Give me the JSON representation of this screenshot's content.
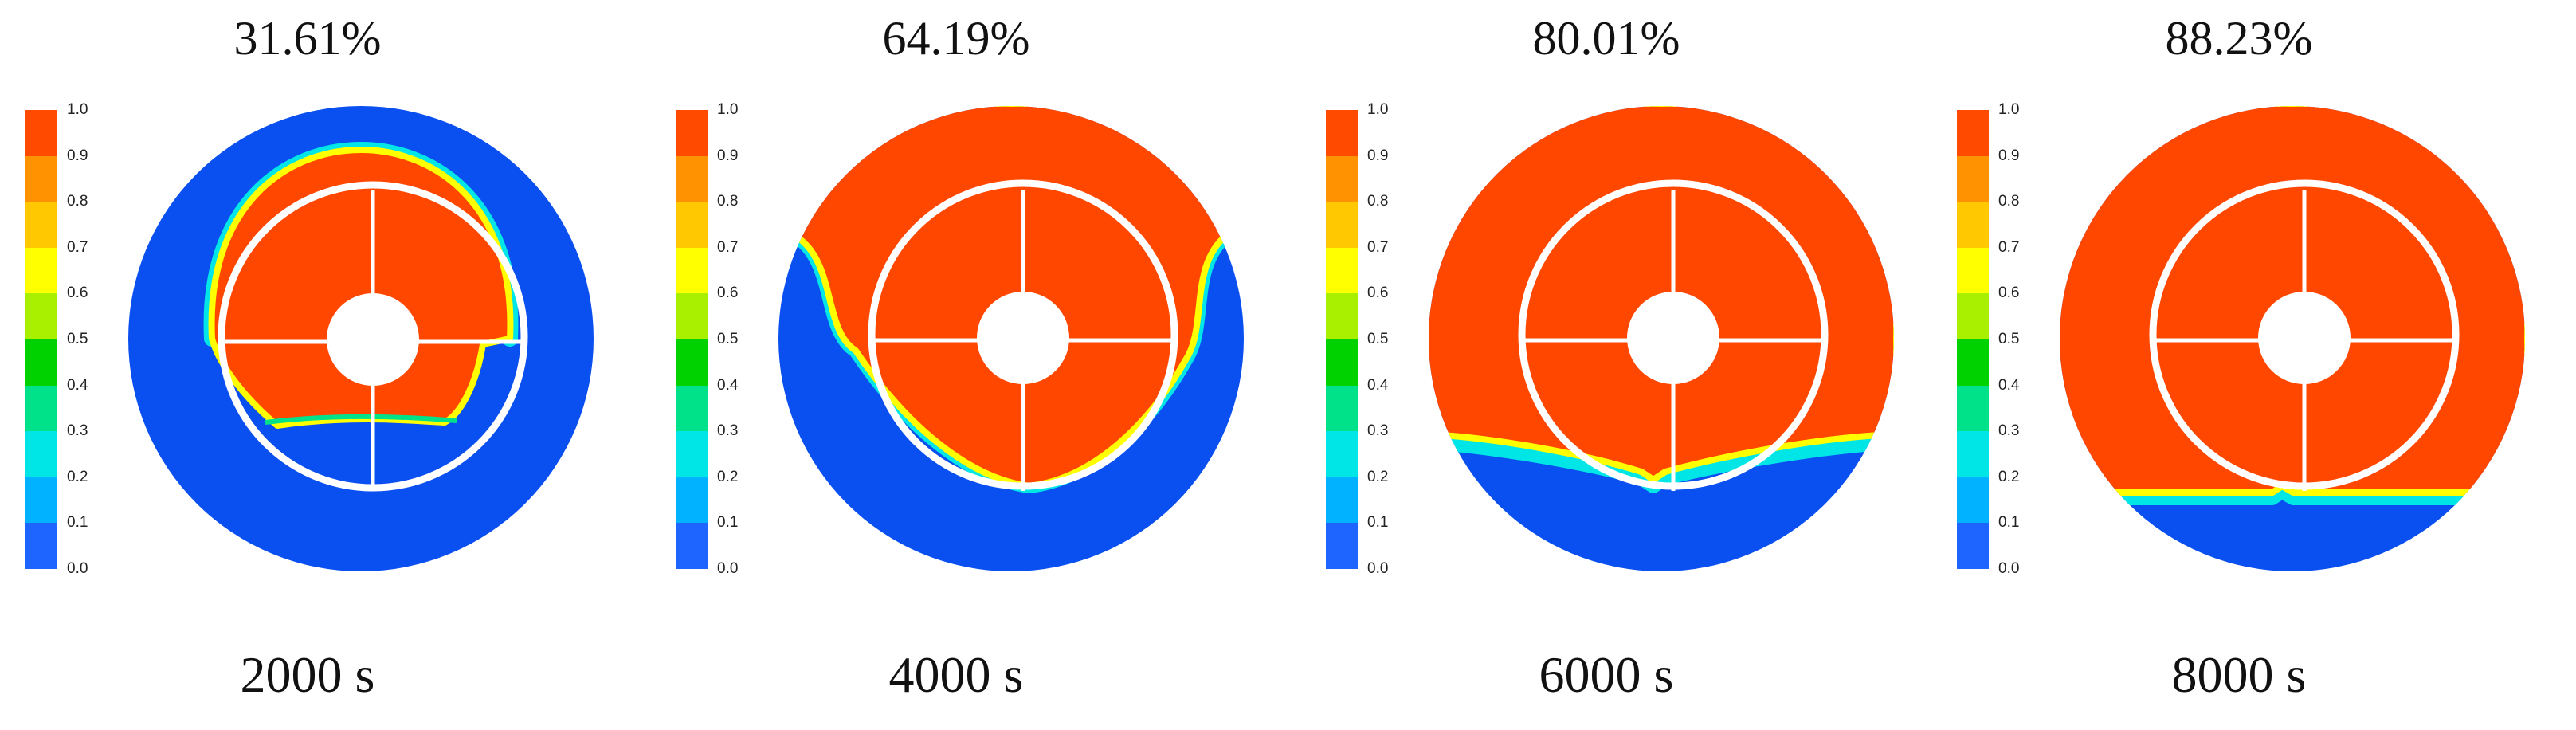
{
  "colorbar": {
    "ticks": [
      "1.0",
      "0.9",
      "0.8",
      "0.7",
      "0.6",
      "0.5",
      "0.4",
      "0.3",
      "0.2",
      "0.1",
      "0.0"
    ],
    "colors": [
      "#ff4a00",
      "#ff9200",
      "#ffc800",
      "#ffff00",
      "#a8f000",
      "#00d200",
      "#00e28a",
      "#00e6e6",
      "#00b2ff",
      "#1e64ff"
    ]
  },
  "colors": {
    "liquid": "#ff4700",
    "gas": "#0a4ff0",
    "overlay": "#ffffff"
  },
  "panels": [
    {
      "percentage": "31.61%",
      "time": "2000 s"
    },
    {
      "percentage": "64.19%",
      "time": "4000 s"
    },
    {
      "percentage": "80.01%",
      "time": "6000 s"
    },
    {
      "percentage": "88.23%",
      "time": "8000 s"
    }
  ]
}
